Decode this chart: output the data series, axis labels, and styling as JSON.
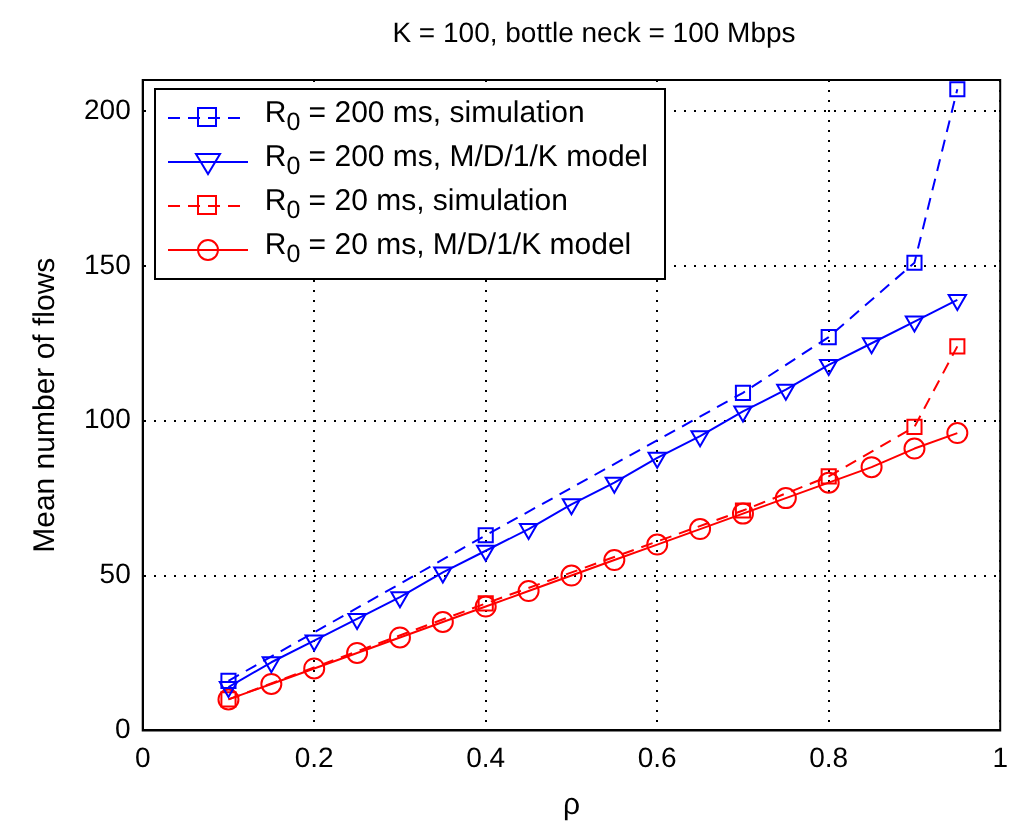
{
  "chart_data": {
    "type": "line",
    "title": "K = 100, bottle neck = 100 Mbps",
    "xlabel": "ρ",
    "ylabel": "Mean number of flows",
    "xlim": [
      0,
      1
    ],
    "xticks": [
      0,
      0.2,
      0.4,
      0.6,
      0.8,
      1
    ],
    "ylim": [
      0,
      210
    ],
    "yticks": [
      0,
      50,
      100,
      150,
      200
    ],
    "grid": true,
    "legend": "top left",
    "series": [
      {
        "name": "R$_{0}$ = 200 ms, simulation",
        "color": "#0000ff",
        "marker": "square",
        "line_style": "dashed",
        "x": [
          0.1,
          0.4,
          0.7,
          0.8,
          0.9,
          0.95
        ],
        "values": [
          16,
          63,
          109,
          127,
          151,
          207
        ]
      },
      {
        "name": "R$_{0}$ = 200 ms, M/D/1/K model",
        "color": "#0000ff",
        "marker": "triangle",
        "line_style": "solid",
        "x": [
          0.1,
          0.15,
          0.2,
          0.25,
          0.3,
          0.35,
          0.4,
          0.45,
          0.5,
          0.55,
          0.6,
          0.65,
          0.7,
          0.75,
          0.8,
          0.85,
          0.9,
          0.95
        ],
        "values": [
          14,
          22,
          29,
          36,
          43,
          51,
          58,
          65,
          73,
          80,
          88,
          95,
          103,
          110,
          118,
          125,
          132,
          139
        ]
      },
      {
        "name": "R$_{0}$ = 20 ms, simulation",
        "color": "#ff0000",
        "marker": "square",
        "line_style": "dashed",
        "x": [
          0.1,
          0.4,
          0.7,
          0.8,
          0.9,
          0.95
        ],
        "values": [
          10,
          41,
          71,
          82,
          98,
          124
        ]
      },
      {
        "name": "R$_{0}$ = 20 ms, M/D/1/K model",
        "color": "#ff0000",
        "marker": "circle",
        "line_style": "solid",
        "x": [
          0.1,
          0.15,
          0.2,
          0.25,
          0.3,
          0.35,
          0.4,
          0.45,
          0.5,
          0.55,
          0.6,
          0.65,
          0.7,
          0.75,
          0.8,
          0.85,
          0.9,
          0.95
        ],
        "values": [
          10,
          15,
          20,
          25,
          30,
          35,
          40,
          45,
          50,
          55,
          60,
          65,
          70,
          75,
          80,
          85,
          91,
          96
        ]
      }
    ]
  }
}
